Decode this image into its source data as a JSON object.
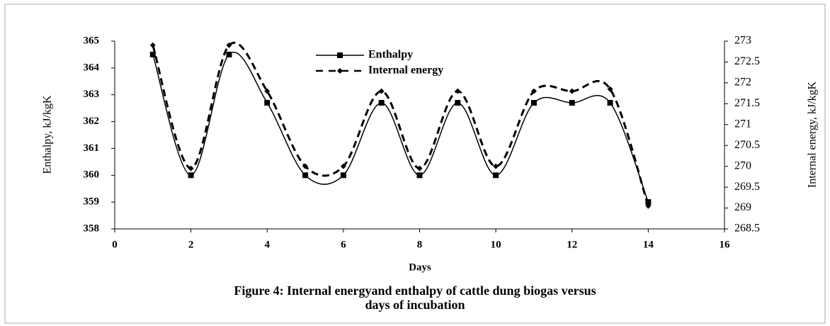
{
  "chart_data": {
    "type": "line",
    "title": "Figure 4: Internal energyand enthalpy of cattle dung biogas versus days of incubation",
    "xlabel": "Days",
    "ylabel": "Enthalpy, kJ/kgK",
    "y2label": "Internal energy, kJ/kgK",
    "x": [
      1,
      2,
      3,
      4,
      5,
      6,
      7,
      8,
      9,
      10,
      11,
      12,
      13,
      14
    ],
    "series": [
      {
        "name": "Enthalpy",
        "color": "#000000",
        "marker": "square",
        "dash": "solid",
        "values": [
          364.5,
          360.0,
          364.5,
          362.7,
          360.0,
          360.0,
          362.7,
          360.0,
          362.7,
          360.0,
          362.7,
          362.7,
          362.7,
          359.0
        ]
      },
      {
        "name": "Internal energy",
        "color": "#000000",
        "marker": "diamond",
        "dash": "dashed",
        "axis": "y2",
        "values": [
          272.9,
          269.95,
          272.9,
          271.8,
          270.0,
          270.0,
          271.8,
          269.95,
          271.8,
          270.0,
          271.8,
          271.8,
          271.85,
          269.05
        ]
      }
    ],
    "xlim": [
      0,
      16
    ],
    "xticks": [
      0,
      2,
      4,
      6,
      8,
      10,
      12,
      14,
      16
    ],
    "ylim": [
      358,
      365
    ],
    "yticks": [
      358,
      359,
      360,
      361,
      362,
      363,
      364,
      365
    ],
    "y2lim": [
      268.5,
      273
    ],
    "y2ticks": [
      268.5,
      269,
      269.5,
      270,
      270.5,
      271,
      271.5,
      272,
      272.5,
      273
    ],
    "smooth": true,
    "grid": false
  }
}
